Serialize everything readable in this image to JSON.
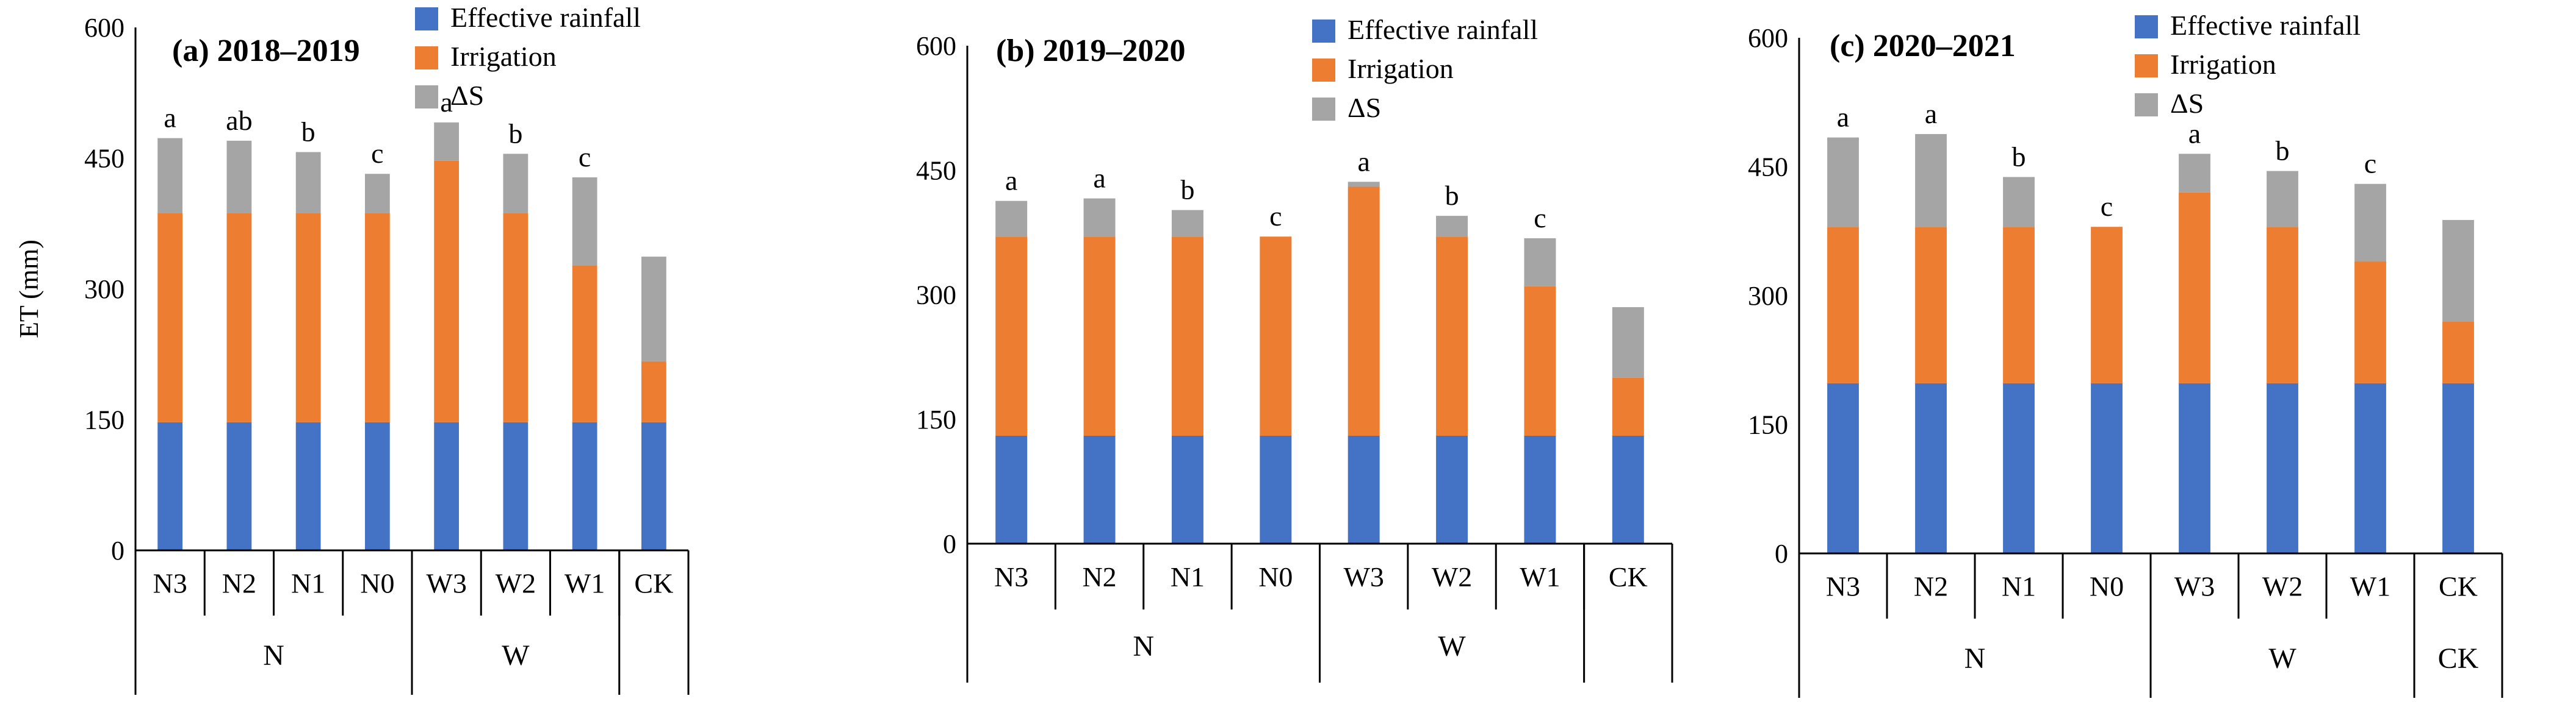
{
  "colors": {
    "rain": "#4472C4",
    "irr": "#ED7D31",
    "ds": "#A5A5A5"
  },
  "chart_data": [
    {
      "type": "bar",
      "stacked": true,
      "title": "(a) 2018–2019",
      "ylabel": "ET (mm)",
      "ylim": [
        0,
        600
      ],
      "yticks": [
        "0",
        "150",
        "300",
        "450",
        "600"
      ],
      "categories": [
        "N3",
        "N2",
        "N1",
        "N0",
        "W3",
        "W2",
        "W1",
        "CK"
      ],
      "groups": [
        {
          "label": "N",
          "count": 4
        },
        {
          "label": "W",
          "count": 3
        },
        {
          "label": "",
          "count": 1
        }
      ],
      "series": [
        {
          "name": "Effective rainfall",
          "color": "#4472C4",
          "values": [
            147,
            147,
            147,
            147,
            147,
            147,
            147,
            147
          ]
        },
        {
          "name": "Irrigation",
          "color": "#ED7D31",
          "values": [
            240,
            240,
            240,
            240,
            300,
            240,
            180,
            70
          ]
        },
        {
          "name": "ΔS",
          "color": "#A5A5A5",
          "values": [
            86,
            83,
            70,
            45,
            44,
            68,
            101,
            120
          ]
        }
      ],
      "annotations": [
        "a",
        "ab",
        "b",
        "c",
        "a",
        "b",
        "c",
        ""
      ],
      "legend": "top-left"
    },
    {
      "type": "bar",
      "stacked": true,
      "title": "(b) 2019–2020",
      "ylabel": "",
      "ylim": [
        0,
        600
      ],
      "yticks": [
        "0",
        "150",
        "300",
        "450",
        "600"
      ],
      "categories": [
        "N3",
        "N2",
        "N1",
        "N0",
        "W3",
        "W2",
        "W1",
        "CK"
      ],
      "groups": [
        {
          "label": "N",
          "count": 4
        },
        {
          "label": "W",
          "count": 3
        },
        {
          "label": "",
          "count": 1
        }
      ],
      "series": [
        {
          "name": "Effective rainfall",
          "color": "#4472C4",
          "values": [
            130,
            130,
            130,
            130,
            130,
            130,
            130,
            130
          ]
        },
        {
          "name": "Irrigation",
          "color": "#ED7D31",
          "values": [
            240,
            240,
            240,
            240,
            300,
            240,
            180,
            70
          ]
        },
        {
          "name": "ΔS",
          "color": "#A5A5A5",
          "values": [
            43,
            46,
            32,
            0,
            6,
            25,
            58,
            85
          ]
        }
      ],
      "annotations": [
        "a",
        "a",
        "b",
        "c",
        "a",
        "b",
        "c",
        ""
      ],
      "legend": "top-left"
    },
    {
      "type": "bar",
      "stacked": true,
      "title": "(c) 2020–2021",
      "ylabel": "",
      "ylim": [
        0,
        600
      ],
      "yticks": [
        "0",
        "150",
        "300",
        "450",
        "600"
      ],
      "categories": [
        "N3",
        "N2",
        "N1",
        "N0",
        "W3",
        "W2",
        "W1",
        "CK"
      ],
      "groups": [
        {
          "label": "N",
          "count": 4
        },
        {
          "label": "W",
          "count": 3
        },
        {
          "label": "CK",
          "count": 1
        }
      ],
      "series": [
        {
          "name": "Effective rainfall",
          "color": "#4472C4",
          "values": [
            198,
            198,
            198,
            198,
            198,
            198,
            198,
            198
          ]
        },
        {
          "name": "Irrigation",
          "color": "#ED7D31",
          "values": [
            182,
            182,
            182,
            182,
            222,
            182,
            142,
            72
          ]
        },
        {
          "name": "ΔS",
          "color": "#A5A5A5",
          "values": [
            104,
            108,
            58,
            0,
            45,
            65,
            90,
            118
          ]
        }
      ],
      "annotations": [
        "a",
        "a",
        "b",
        "c",
        "a",
        "b",
        "c",
        ""
      ],
      "legend": "top-left"
    }
  ]
}
